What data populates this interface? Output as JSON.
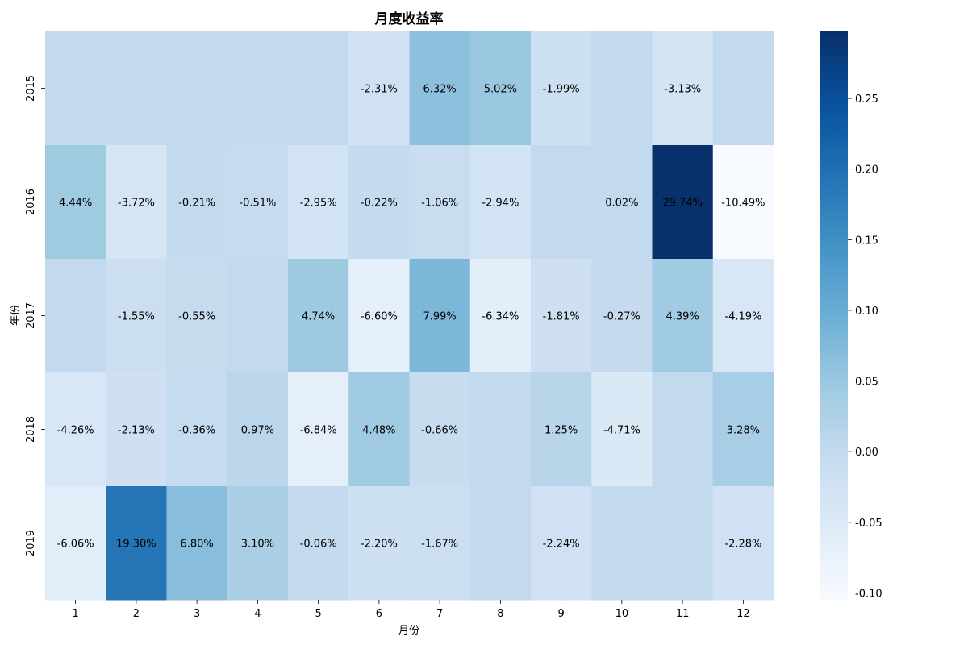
{
  "chart_data": {
    "type": "heatmap",
    "title": "月度收益率",
    "xlabel": "月份",
    "ylabel": "年份",
    "x_categories": [
      "1",
      "2",
      "3",
      "4",
      "5",
      "6",
      "7",
      "8",
      "9",
      "10",
      "11",
      "12"
    ],
    "y_categories": [
      "2015",
      "2016",
      "2017",
      "2018",
      "2019"
    ],
    "values": [
      [
        0.0,
        0.0,
        0.0,
        0.0,
        0.0,
        -0.0231,
        0.0632,
        0.0502,
        -0.0199,
        0.0,
        -0.0313,
        0.0
      ],
      [
        0.0444,
        -0.0372,
        -0.0021,
        -0.0051,
        -0.0295,
        -0.0022,
        -0.0106,
        -0.0294,
        0.0,
        0.0002,
        0.2974,
        -0.1049
      ],
      [
        0.0,
        -0.0155,
        -0.0055,
        0.0,
        0.0474,
        -0.066,
        0.0799,
        -0.0634,
        -0.0181,
        -0.0027,
        0.0439,
        -0.0419
      ],
      [
        -0.0426,
        -0.0213,
        -0.0036,
        0.0097,
        -0.0684,
        0.0448,
        -0.0066,
        0.0,
        0.0125,
        -0.0471,
        0.0,
        0.0328
      ],
      [
        -0.0606,
        0.193,
        0.068,
        0.031,
        -0.0006,
        -0.022,
        -0.0167,
        0.0,
        -0.0224,
        0.0,
        0.0,
        -0.0228
      ]
    ],
    "annotations": [
      [
        "",
        "",
        "",
        "",
        "",
        "-2.31%",
        "6.32%",
        "5.02%",
        "-1.99%",
        "",
        "-3.13%",
        ""
      ],
      [
        "4.44%",
        "-3.72%",
        "-0.21%",
        "-0.51%",
        "-2.95%",
        "-0.22%",
        "-1.06%",
        "-2.94%",
        "",
        "0.02%",
        "29.74%",
        "-10.49%"
      ],
      [
        "",
        "-1.55%",
        "-0.55%",
        "",
        "4.74%",
        "-6.60%",
        "7.99%",
        "-6.34%",
        "-1.81%",
        "-0.27%",
        "4.39%",
        "-4.19%"
      ],
      [
        "-4.26%",
        "-2.13%",
        "-0.36%",
        "0.97%",
        "-6.84%",
        "4.48%",
        "-0.66%",
        "",
        "1.25%",
        "-4.71%",
        "",
        "3.28%"
      ],
      [
        "-6.06%",
        "19.30%",
        "6.80%",
        "3.10%",
        "-0.06%",
        "-2.20%",
        "-1.67%",
        "",
        "-2.24%",
        "",
        "",
        "-2.28%"
      ]
    ],
    "vmin": -0.1049,
    "vmax": 0.2974,
    "colormap": "Blues",
    "colorbar_ticks": [
      -0.1,
      -0.05,
      0.0,
      0.05,
      0.1,
      0.15,
      0.2,
      0.25
    ],
    "colorbar_tick_labels": [
      "-0.10",
      "-0.05",
      "0.00",
      "0.05",
      "0.10",
      "0.15",
      "0.20",
      "0.25"
    ]
  }
}
